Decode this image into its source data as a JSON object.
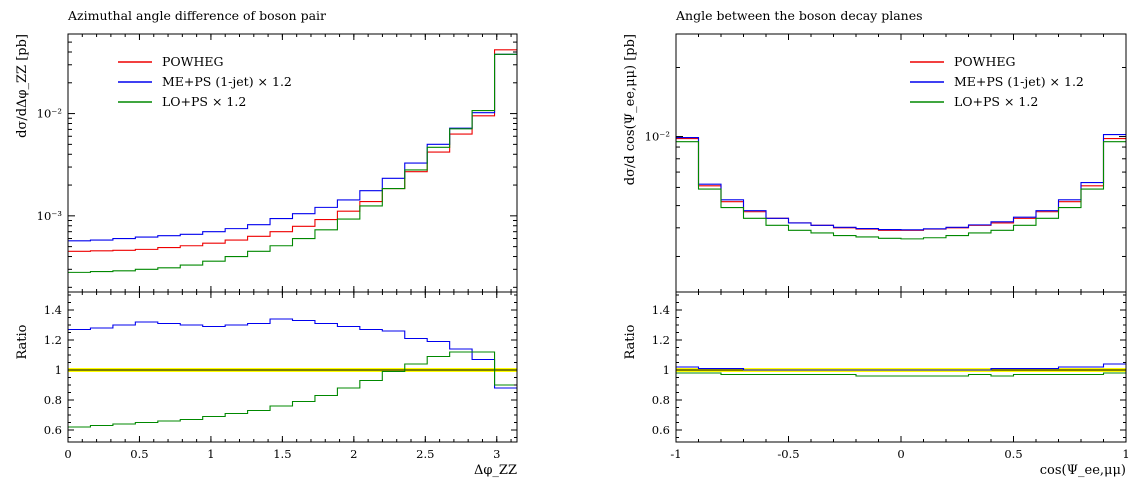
{
  "chart_data": [
    {
      "type": "line",
      "title": "Azimuthal angle difference of boson pair",
      "xlabel": "Δφ_ZZ",
      "ylabel": "dσ/dΔφ_ZZ [pb]",
      "ratio_ylabel": "Ratio",
      "y_scale": "log",
      "ylim": [
        0.00018,
        0.06
      ],
      "xlim": [
        0,
        3.1416
      ],
      "ratio_ylim": [
        0.52,
        1.52
      ],
      "x_ticks": [
        "0",
        "0.5",
        "1",
        "1.5",
        "2",
        "2.5",
        "3"
      ],
      "x_tick_values": [
        0,
        0.5,
        1,
        1.5,
        2,
        2.5,
        3
      ],
      "y_ticks": [
        "10⁻³",
        "10⁻²"
      ],
      "y_tick_values": [
        0.001,
        0.01
      ],
      "ratio_ticks": [
        "0.6",
        "0.8",
        "1",
        "1.2",
        "1.4"
      ],
      "ratio_tick_values": [
        0.6,
        0.8,
        1.0,
        1.2,
        1.4
      ],
      "legend_placement": "top-left",
      "ratio_reference_band": true,
      "bin_edges": [
        0,
        0.1571,
        0.3142,
        0.4712,
        0.6283,
        0.7854,
        0.9425,
        1.0996,
        1.2566,
        1.4137,
        1.5708,
        1.7279,
        1.885,
        2.042,
        2.1991,
        2.3562,
        2.5133,
        2.6704,
        2.8274,
        2.9845,
        3.1416
      ],
      "series": [
        {
          "name": "POWHEG",
          "color": "#ee0000",
          "values": [
            0.00045,
            0.000455,
            0.00046,
            0.00047,
            0.00049,
            0.00051,
            0.00054,
            0.00058,
            0.00063,
            0.0007,
            0.00079,
            0.00092,
            0.00111,
            0.00138,
            0.00185,
            0.0027,
            0.0042,
            0.0063,
            0.0095,
            0.042
          ],
          "ratio": [
            1,
            1,
            1,
            1,
            1,
            1,
            1,
            1,
            1,
            1,
            1,
            1,
            1,
            1,
            1,
            1,
            1,
            1,
            1,
            1
          ]
        },
        {
          "name": "ME+PS (1-jet) × 1.2",
          "color": "#0000ee",
          "values": [
            0.00057,
            0.00058,
            0.0006,
            0.00062,
            0.00064,
            0.00066,
            0.0007,
            0.00075,
            0.00082,
            0.00094,
            0.00105,
            0.00121,
            0.00143,
            0.00176,
            0.00233,
            0.00328,
            0.005,
            0.0072,
            0.0102,
            0.038
          ],
          "ratio": [
            1.27,
            1.28,
            1.3,
            1.32,
            1.31,
            1.3,
            1.29,
            1.3,
            1.31,
            1.34,
            1.33,
            1.31,
            1.29,
            1.27,
            1.26,
            1.21,
            1.19,
            1.14,
            1.07,
            0.88
          ]
        },
        {
          "name": "LO+PS × 1.2",
          "color": "#008800",
          "values": [
            0.00028,
            0.000285,
            0.00029,
            0.0003,
            0.00031,
            0.00033,
            0.00036,
            0.0004,
            0.00045,
            0.00051,
            0.0006,
            0.00073,
            0.00093,
            0.00125,
            0.00185,
            0.00281,
            0.00468,
            0.0071,
            0.0107,
            0.038
          ],
          "ratio": [
            0.62,
            0.63,
            0.64,
            0.65,
            0.66,
            0.67,
            0.69,
            0.71,
            0.73,
            0.76,
            0.79,
            0.83,
            0.88,
            0.93,
            0.99,
            1.04,
            1.09,
            1.12,
            1.12,
            0.9
          ]
        }
      ]
    },
    {
      "type": "line",
      "title": "Angle between the boson decay planes",
      "xlabel": "cos(Ψ_ee,μμ)",
      "ylabel": "dσ/d cos(Ψ_ee,μμ) [pb]",
      "ratio_ylabel": "Ratio",
      "y_scale": "log",
      "ylim": [
        0.0021,
        0.028
      ],
      "xlim": [
        -1,
        1
      ],
      "ratio_ylim": [
        0.52,
        1.52
      ],
      "x_ticks": [
        "-1",
        "-0.5",
        "0",
        "0.5",
        "1"
      ],
      "x_tick_values": [
        -1,
        -0.5,
        0,
        0.5,
        1
      ],
      "y_ticks": [
        "10⁻²"
      ],
      "y_tick_values": [
        0.01
      ],
      "ratio_ticks": [
        "0.6",
        "0.8",
        "1",
        "1.2",
        "1.4"
      ],
      "ratio_tick_values": [
        0.6,
        0.8,
        1.0,
        1.2,
        1.4
      ],
      "legend_placement": "top-right",
      "ratio_reference_band": true,
      "bin_edges": [
        -1,
        -0.9,
        -0.8,
        -0.7,
        -0.6,
        -0.5,
        -0.4,
        -0.3,
        -0.2,
        -0.1,
        0,
        0.1,
        0.2,
        0.3,
        0.4,
        0.5,
        0.6,
        0.7,
        0.8,
        0.9,
        1
      ],
      "series": [
        {
          "name": "POWHEG",
          "color": "#ee0000",
          "values": [
            0.0098,
            0.0061,
            0.0052,
            0.0047,
            0.0044,
            0.0042,
            0.0041,
            0.004,
            0.00395,
            0.0039,
            0.0039,
            0.00395,
            0.004,
            0.0041,
            0.0042,
            0.0044,
            0.0047,
            0.0052,
            0.0061,
            0.0098
          ],
          "ratio": [
            1,
            1,
            1,
            1,
            1,
            1,
            1,
            1,
            1,
            1,
            1,
            1,
            1,
            1,
            1,
            1,
            1,
            1,
            1,
            1
          ]
        },
        {
          "name": "ME+PS (1-jet) × 1.2",
          "color": "#0000ee",
          "values": [
            0.0099,
            0.0062,
            0.0053,
            0.00475,
            0.0044,
            0.0042,
            0.0041,
            0.00402,
            0.00397,
            0.00393,
            0.00392,
            0.00396,
            0.00402,
            0.00412,
            0.00425,
            0.00445,
            0.00475,
            0.0053,
            0.0063,
            0.0102
          ],
          "ratio": [
            1.02,
            1.01,
            1.01,
            1.0,
            1.0,
            1.0,
            1.0,
            1.0,
            1.0,
            1.0,
            1.0,
            1.0,
            1.0,
            1.0,
            1.01,
            1.01,
            1.01,
            1.02,
            1.02,
            1.04
          ]
        },
        {
          "name": "LO+PS × 1.2",
          "color": "#008800",
          "values": [
            0.0095,
            0.0059,
            0.0049,
            0.0044,
            0.0041,
            0.0039,
            0.0038,
            0.0037,
            0.00365,
            0.0036,
            0.00358,
            0.00362,
            0.0037,
            0.0038,
            0.0039,
            0.0041,
            0.0044,
            0.0049,
            0.0059,
            0.0095
          ],
          "ratio": [
            0.98,
            0.98,
            0.97,
            0.97,
            0.97,
            0.97,
            0.97,
            0.97,
            0.96,
            0.96,
            0.96,
            0.96,
            0.96,
            0.97,
            0.96,
            0.97,
            0.97,
            0.97,
            0.97,
            0.98
          ]
        }
      ]
    }
  ]
}
